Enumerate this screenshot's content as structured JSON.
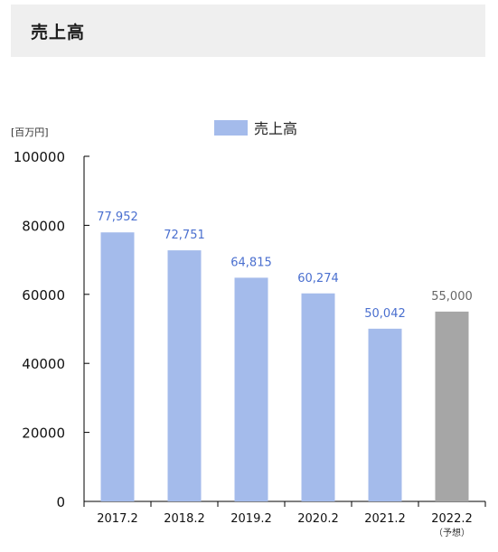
{
  "header": {
    "title": "売上高"
  },
  "chart_data": {
    "type": "bar",
    "title": "",
    "unit_label": "[百万円]",
    "ylim": [
      0,
      100000
    ],
    "yticks": [
      "100000",
      "80000",
      "60000",
      "40000",
      "20000",
      "0"
    ],
    "ytick_values": [
      100000,
      80000,
      60000,
      40000,
      20000,
      0
    ],
    "categories": [
      "2017.2",
      "2018.2",
      "2019.2",
      "2020.2",
      "2021.2",
      "2022.2"
    ],
    "category_notes": [
      "",
      "",
      "",
      "",
      "",
      "（予想）"
    ],
    "series": [
      {
        "name": "売上高",
        "values": [
          77952,
          72751,
          64815,
          60274,
          50042,
          55000
        ],
        "value_labels": [
          "77,952",
          "72,751",
          "64,815",
          "60,274",
          "50,042",
          "55,000"
        ],
        "forecast": [
          false,
          false,
          false,
          false,
          false,
          true
        ]
      }
    ],
    "colors": {
      "bar": "#a4bbeb",
      "forecast_bar": "#a6a6a6",
      "label": "#4a6fcf",
      "forecast_label": "#666666",
      "axis": "#000000"
    },
    "legend_position": "top-center",
    "grid": false
  }
}
